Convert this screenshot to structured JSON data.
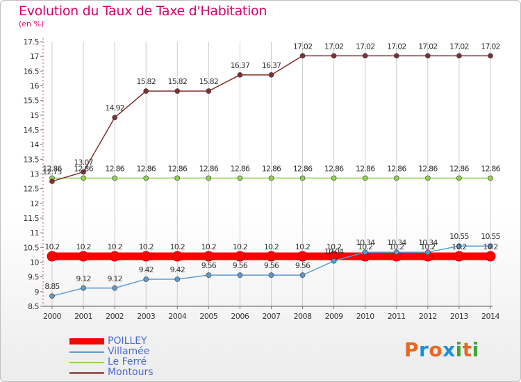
{
  "title": "Evolution du Taux de Taxe d'Habitation",
  "subtitle": "(en %)",
  "logo": {
    "text": "Proxiti",
    "colors": [
      "#e8661f",
      "#1f8fd6",
      "#e8661f",
      "#1f8fd6",
      "#3aa832",
      "#e8661f",
      "#3aa832"
    ]
  },
  "chart_data": {
    "type": "line",
    "title": "Evolution du Taux de Taxe d'Habitation",
    "ylabel": "(en %)",
    "xlabel": "",
    "categories": [
      "2000",
      "2001",
      "2002",
      "2003",
      "2004",
      "2005",
      "2006",
      "2007",
      "2008",
      "2009",
      "2010",
      "2011",
      "2012",
      "2013",
      "2014"
    ],
    "ylim": [
      8.5,
      17.5
    ],
    "yticks": [
      8.5,
      9,
      9.5,
      10,
      10.5,
      11,
      11.5,
      12,
      12.5,
      13,
      13.5,
      14,
      14.5,
      15,
      15.5,
      16,
      16.5,
      17,
      17.5
    ],
    "ytick_labels": [
      "8.5",
      "9",
      "9.5",
      "10",
      "10.5",
      "11",
      "11.5",
      "12",
      "12.5",
      "13",
      "13.5",
      "14",
      "14.5",
      "15",
      "15.5",
      "16",
      "16.5",
      "17",
      "17.5"
    ],
    "grid": "vertical",
    "legend": "bottom-left",
    "series": [
      {
        "name": "POILLEY",
        "color": "#ff0000",
        "style": "thick",
        "values": [
          10.2,
          10.2,
          10.2,
          10.2,
          10.2,
          10.2,
          10.2,
          10.2,
          10.2,
          10.2,
          10.2,
          10.2,
          10.2,
          10.2,
          10.2
        ],
        "labels": [
          "10.2",
          "10.2",
          "10.2",
          "10.2",
          "10.2",
          "10.2",
          "10.2",
          "10.2",
          "10.2",
          "10.2",
          "10.2",
          "10.2",
          "10.2",
          "10.2",
          "10.2"
        ]
      },
      {
        "name": "Villamée",
        "color": "#5b9bd5",
        "style": "thin",
        "values": [
          8.85,
          9.12,
          9.12,
          9.42,
          9.42,
          9.56,
          9.56,
          9.56,
          9.56,
          10.04,
          10.34,
          10.34,
          10.34,
          10.55,
          10.55
        ],
        "labels": [
          "8.85",
          "9.12",
          "9.12",
          "9.42",
          "9.42",
          "9.56",
          "9.56",
          "9.56",
          "9.56",
          "10.04",
          "10.34",
          "10.34",
          "10.34",
          "10.55",
          "10.55"
        ]
      },
      {
        "name": "Le Ferré",
        "color": "#92d050",
        "style": "thin",
        "values": [
          12.86,
          12.86,
          12.86,
          12.86,
          12.86,
          12.86,
          12.86,
          12.86,
          12.86,
          12.86,
          12.86,
          12.86,
          12.86,
          12.86,
          12.86
        ],
        "labels": [
          "12.86",
          "12.86",
          "12.86",
          "12.86",
          "12.86",
          "12.86",
          "12.86",
          "12.86",
          "12.86",
          "12.86",
          "12.86",
          "12.86",
          "12.86",
          "12.86",
          "12.86"
        ]
      },
      {
        "name": "Montours",
        "color": "#7f2f2f",
        "style": "thin",
        "values": [
          12.75,
          13.07,
          14.92,
          15.82,
          15.82,
          15.82,
          16.37,
          16.37,
          17.02,
          17.02,
          17.02,
          17.02,
          17.02,
          17.02,
          17.02
        ],
        "labels": [
          "12.75",
          "13.07",
          "14.92",
          "15.82",
          "15.82",
          "15.82",
          "16.37",
          "16.37",
          "17.02",
          "17.02",
          "17.02",
          "17.02",
          "17.02",
          "17.02",
          "17.02"
        ]
      }
    ]
  }
}
